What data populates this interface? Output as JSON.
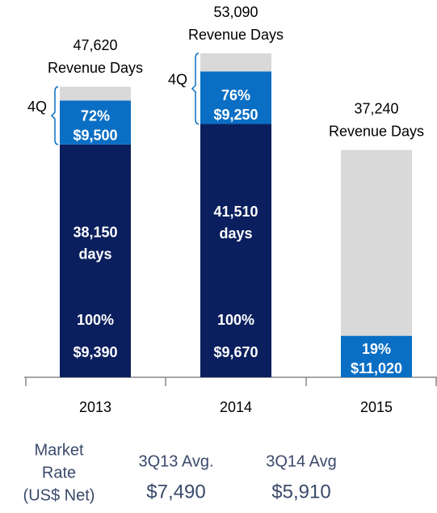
{
  "chart_data": {
    "type": "stacked_bar",
    "categories": [
      "2013",
      "2014",
      "2015"
    ],
    "totals": [
      47620,
      53090,
      37240
    ],
    "total_labels": [
      "47,620",
      "53,090",
      "37,240"
    ],
    "total_caption": "Revenue Days",
    "series": [
      {
        "color": "#0b1f5e",
        "values": [
          38150,
          41510,
          null
        ],
        "value_labels": [
          "38,150",
          "41,510",
          null
        ],
        "unit": "days",
        "pct_labels": [
          "100%",
          "100%",
          null
        ],
        "rate_labels": [
          "$9,390",
          "$9,670",
          null
        ]
      },
      {
        "color": "#0a6fc4",
        "values": [
          7200,
          8600,
          6800
        ],
        "pct_labels": [
          "72%",
          "76%",
          "19%"
        ],
        "rate_labels": [
          "$9,500",
          "$9,250",
          "$11,020"
        ],
        "bracket": [
          "4Q",
          "4Q",
          null
        ]
      },
      {
        "color": "#d9d9d9",
        "values": [
          2270,
          2980,
          30440
        ]
      }
    ]
  },
  "footer": {
    "label_lines": [
      "Market",
      "Rate",
      "(US$ Net)"
    ],
    "columns": [
      {
        "heading": "3Q13 Avg.",
        "value": "$7,490"
      },
      {
        "heading": "3Q14 Avg",
        "value": "$5,910"
      }
    ]
  }
}
